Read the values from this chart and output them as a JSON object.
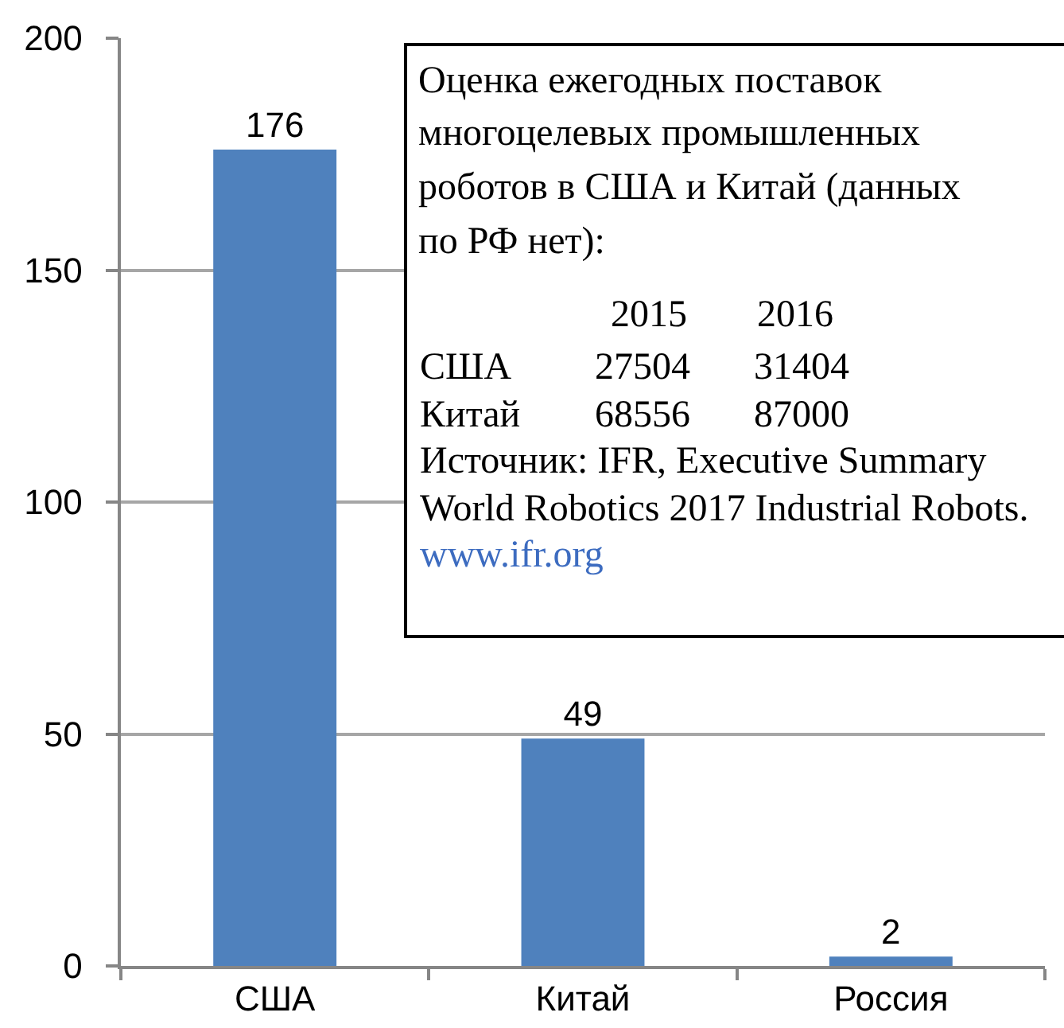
{
  "chart_data": {
    "type": "bar",
    "categories": [
      "США",
      "Китай",
      "Россия"
    ],
    "values": [
      176,
      49,
      2
    ],
    "color": "#4f81bd",
    "data_labels": true,
    "ylim": [
      0,
      200
    ],
    "yticks": [
      0,
      50,
      100,
      150,
      200
    ],
    "grid": "y",
    "annotations": [
      "Оценка ежегодных поставок\nмногоцелевых промышленных\nроботов в США и Китай (данных\nпо РФ нет):",
      "2015",
      "2016",
      "США",
      "27504",
      "31404",
      "Китай",
      "68556",
      "87000",
      "Источник: IFR, Executive Summary\nWorld Robotics 2017 Industrial Robots.",
      "www.ifr.org"
    ]
  }
}
